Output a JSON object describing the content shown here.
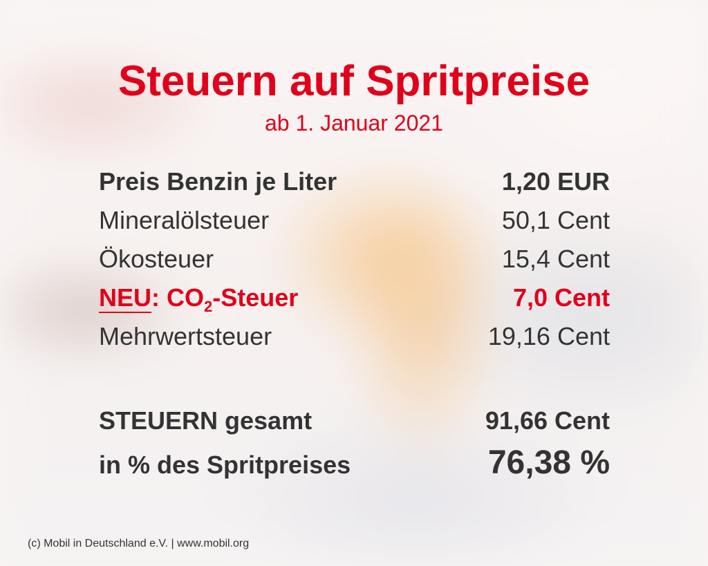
{
  "title": "Steuern auf Spritpreise",
  "subtitle": "ab 1. Januar 2021",
  "rows": [
    {
      "label": "Preis Benzin je Liter",
      "value": "1,20 EUR"
    },
    {
      "label": "Mineralölsteuer",
      "value": "50,1 Cent"
    },
    {
      "label": "Ökosteuer",
      "value": "15,4 Cent"
    },
    {
      "label_parts": [
        "NEU",
        ": CO",
        "2",
        "-Steuer"
      ],
      "value": "7,0 Cent"
    },
    {
      "label": "Mehrwertsteuer",
      "value": "19,16 Cent"
    }
  ],
  "totals": [
    {
      "label": "STEUERN gesamt",
      "value": "91,66 Cent"
    },
    {
      "label": "in % des Spritpreises",
      "value": "76,38 %"
    }
  ],
  "footer": "(c) Mobil in Deutschland e.V. | www.mobil.org"
}
